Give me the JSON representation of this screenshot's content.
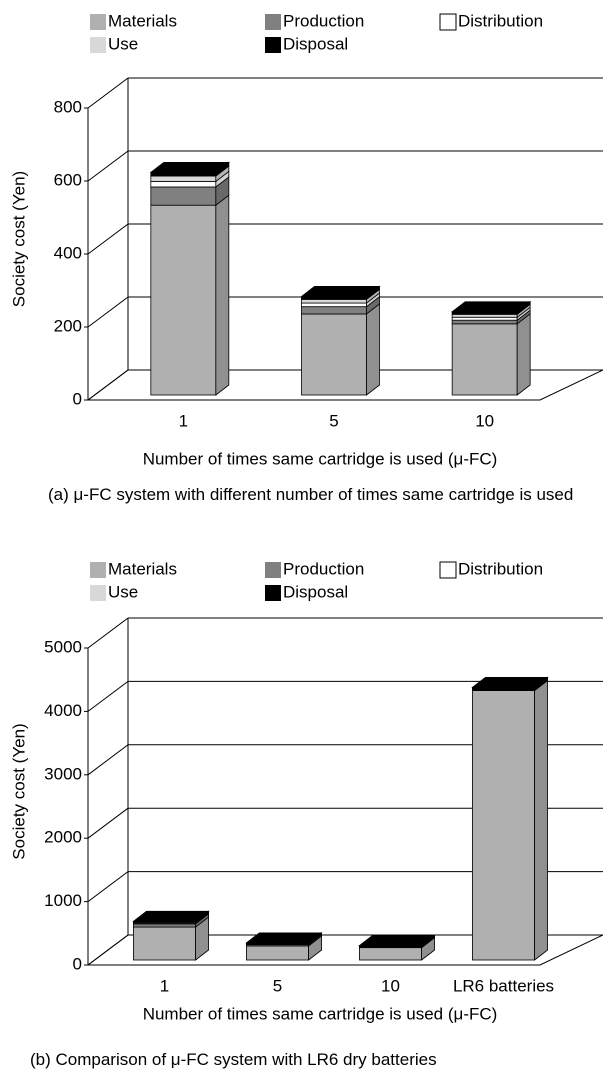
{
  "chart_data": [
    {
      "type": "bar3d_stacked",
      "x_label": "Number of times same cartridge is used (μ-FC)",
      "y_label": "Society cost (Yen)",
      "caption": "(a) μ-FC system with different number of times same cartridge is used",
      "categories": [
        "1",
        "5",
        "10"
      ],
      "series": [
        {
          "name": "Materials",
          "color": "#b0b0b0",
          "values": [
            520,
            222,
            195
          ]
        },
        {
          "name": "Production",
          "color": "#808080",
          "values": [
            50,
            20,
            10
          ]
        },
        {
          "name": "Distribution",
          "color": "#ffffff",
          "values": [
            15,
            10,
            8
          ]
        },
        {
          "name": "Use",
          "color": "#d8d8d8",
          "values": [
            15,
            10,
            8
          ]
        },
        {
          "name": "Disposal",
          "color": "#000000",
          "values": [
            10,
            8,
            7
          ]
        }
      ],
      "ylim": [
        0,
        800
      ],
      "yticks": [
        0,
        200,
        400,
        600,
        800
      ],
      "grid": true
    },
    {
      "type": "bar3d_stacked",
      "x_label": "Number of times same cartridge is used (μ-FC)",
      "y_label": "Society cost (Yen)",
      "caption": "(b) Comparison of μ-FC system with LR6 dry batteries",
      "categories": [
        "1",
        "5",
        "10",
        "LR6 batteries"
      ],
      "series": [
        {
          "name": "Materials",
          "color": "#b0b0b0",
          "values": [
            520,
            222,
            195,
            4250
          ]
        },
        {
          "name": "Production",
          "color": "#808080",
          "values": [
            50,
            20,
            10,
            0
          ]
        },
        {
          "name": "Distribution",
          "color": "#ffffff",
          "values": [
            15,
            10,
            8,
            0
          ]
        },
        {
          "name": "Use",
          "color": "#d8d8d8",
          "values": [
            15,
            10,
            8,
            0
          ]
        },
        {
          "name": "Disposal",
          "color": "#000000",
          "values": [
            10,
            8,
            7,
            50
          ]
        }
      ],
      "ylim": [
        0,
        5000
      ],
      "yticks": [
        0,
        1000,
        2000,
        3000,
        4000,
        5000
      ],
      "grid": true
    }
  ]
}
